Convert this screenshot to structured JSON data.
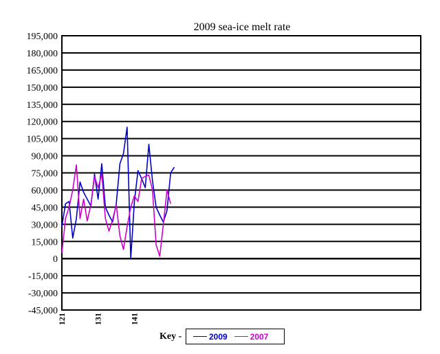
{
  "chart_data": {
    "type": "line",
    "title": "2009 sea-ice melt rate",
    "xlabel": "",
    "ylabel": "",
    "ylim": [
      -45000,
      195000
    ],
    "ytick_step": 15000,
    "xlim": [
      121,
      220
    ],
    "xticks": [
      121,
      131,
      141
    ],
    "grid": true,
    "series": [
      {
        "name": "2009",
        "color": "#0000cc",
        "x": [
          121,
          122,
          123,
          124,
          125,
          126,
          127,
          128,
          129,
          130,
          131,
          132,
          133,
          134,
          135,
          136,
          137,
          138,
          139,
          140,
          141,
          142,
          143,
          144,
          145,
          146,
          147,
          148,
          149,
          150,
          151,
          152,
          153
        ],
        "values": [
          28000,
          48000,
          50000,
          18000,
          35000,
          67000,
          58000,
          52000,
          46000,
          74000,
          52000,
          83000,
          45000,
          38000,
          32000,
          48000,
          83000,
          92000,
          115000,
          0,
          50000,
          77000,
          70000,
          62000,
          100000,
          68000,
          45000,
          38000,
          32000,
          42000,
          75000,
          80000,
          null
        ]
      },
      {
        "name": "2007",
        "color": "#cc00cc",
        "x": [
          121,
          122,
          123,
          124,
          125,
          126,
          127,
          128,
          129,
          130,
          131,
          132,
          133,
          134,
          135,
          136,
          137,
          138,
          139,
          140,
          141,
          142,
          143,
          144,
          145,
          146,
          147,
          148,
          149,
          150,
          151,
          152,
          153
        ],
        "values": [
          5000,
          35000,
          45000,
          60000,
          82000,
          35000,
          52000,
          33000,
          47000,
          72000,
          62000,
          74000,
          35000,
          24000,
          34000,
          47000,
          20000,
          8000,
          28000,
          45000,
          55000,
          50000,
          70000,
          72000,
          73000,
          60000,
          12000,
          2000,
          30000,
          60000,
          48000,
          null,
          null
        ]
      }
    ]
  },
  "key": {
    "label": "Key -"
  }
}
